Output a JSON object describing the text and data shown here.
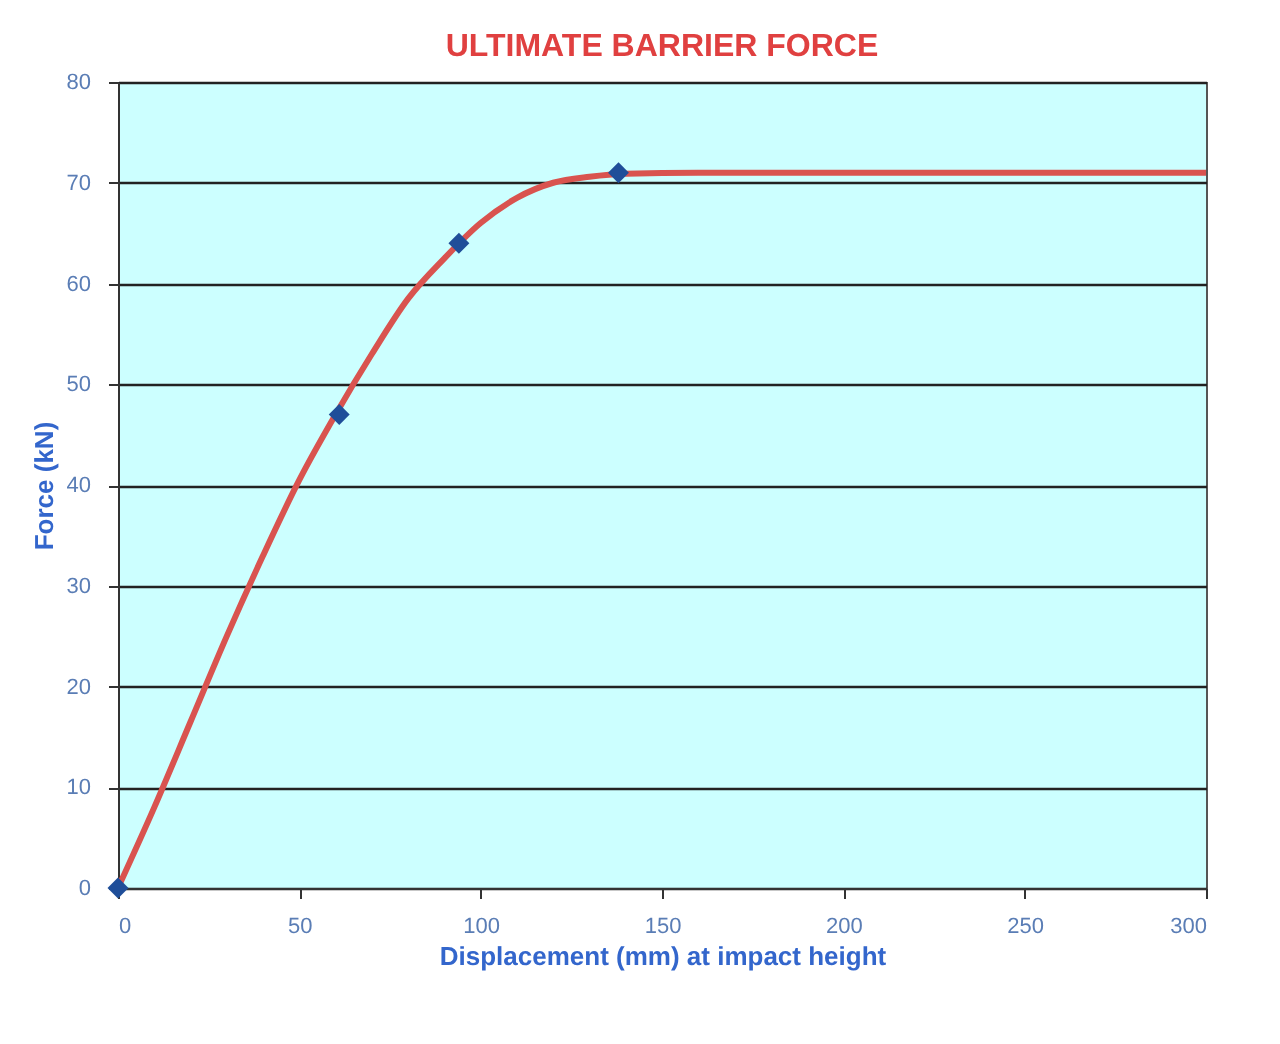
{
  "chart_data": {
    "type": "line",
    "title": "ULTIMATE BARRIER FORCE",
    "xlabel": "Displacement (mm) at impact height",
    "ylabel": "Force (kN)",
    "xlim": [
      0,
      300
    ],
    "xticks": [
      0,
      50,
      100,
      150,
      200,
      250,
      300
    ],
    "ylim": [
      0,
      80
    ],
    "yticks": [
      0,
      10,
      20,
      30,
      40,
      50,
      60,
      70,
      80
    ],
    "grid": "y",
    "series": [
      {
        "color": "#d9534f",
        "line_style": "solid",
        "marker": "none",
        "x": [
          0,
          10,
          20,
          30,
          40,
          50,
          60,
          70,
          80,
          90,
          100,
          110,
          120,
          130,
          140,
          160,
          200,
          250,
          300
        ],
        "values": [
          0,
          8,
          16.5,
          25,
          33,
          40.5,
          47,
          53,
          58.5,
          62.5,
          66,
          68.5,
          70,
          70.6,
          70.9,
          71,
          71,
          71,
          71
        ]
      },
      {
        "type": "scatter",
        "color": "#1f4e99",
        "marker": "diamond",
        "x": [
          0,
          61,
          94,
          138
        ],
        "values": [
          0,
          47,
          64,
          71
        ]
      }
    ]
  }
}
